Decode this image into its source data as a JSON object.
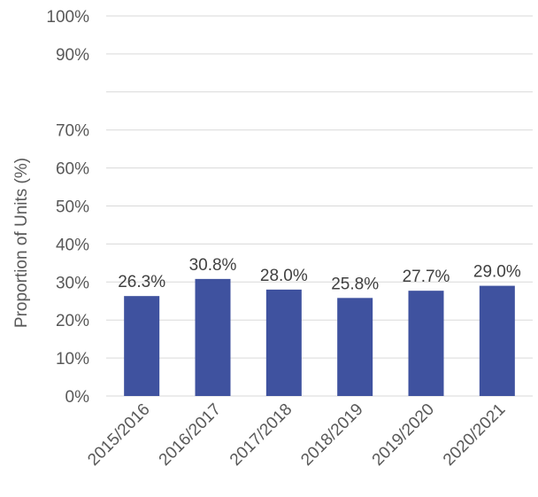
{
  "chart_data": {
    "type": "bar",
    "title": "",
    "xlabel": "",
    "ylabel": "Proportion of Units (%)",
    "categories": [
      "2015/2016",
      "2016/2017",
      "2017/2018",
      "2018/2019",
      "2019/2020",
      "2020/2021"
    ],
    "values": [
      26.3,
      30.8,
      28.0,
      25.8,
      27.7,
      29.0
    ],
    "data_labels": [
      "26.3%",
      "30.8%",
      "28.0%",
      "25.8%",
      "27.7%",
      "29.0%"
    ],
    "ylim": [
      0,
      100
    ],
    "y_ticks": [
      {
        "value": 0,
        "label": "0%"
      },
      {
        "value": 10,
        "label": "10%"
      },
      {
        "value": 20,
        "label": "20%"
      },
      {
        "value": 30,
        "label": "30%"
      },
      {
        "value": 40,
        "label": "40%"
      },
      {
        "value": 50,
        "label": "50%"
      },
      {
        "value": 60,
        "label": "60%"
      },
      {
        "value": 70,
        "label": "70%"
      },
      {
        "value": 80,
        "label": ""
      },
      {
        "value": 90,
        "label": "90%"
      },
      {
        "value": 100,
        "label": "100%"
      }
    ],
    "grid": true,
    "legend": "none",
    "colors": {
      "bar": "#3f529f",
      "grid": "#d9d9d9",
      "text": "#595959",
      "label": "#404040"
    }
  }
}
